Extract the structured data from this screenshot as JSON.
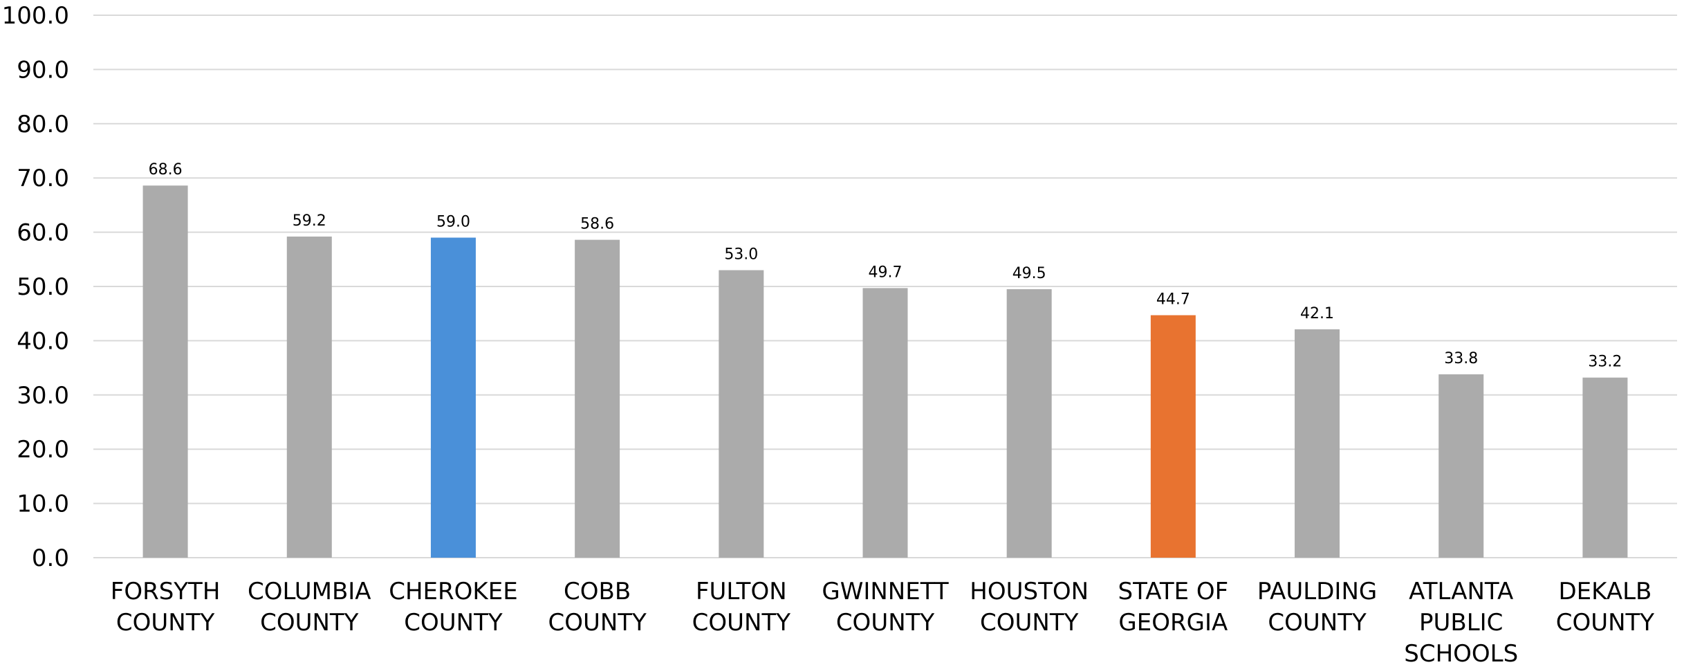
{
  "chart_data": {
    "type": "bar",
    "title": "",
    "xlabel": "",
    "ylabel": "",
    "ylim": [
      0,
      100
    ],
    "yticks": [
      "0.0",
      "10.0",
      "20.0",
      "30.0",
      "40.0",
      "50.0",
      "60.0",
      "70.0",
      "80.0",
      "90.0",
      "100.0"
    ],
    "ytick_values": [
      0,
      10,
      20,
      30,
      40,
      50,
      60,
      70,
      80,
      90,
      100
    ],
    "grid": true,
    "categories": [
      [
        "FORSYTH",
        "COUNTY"
      ],
      [
        "COLUMBIA",
        "COUNTY"
      ],
      [
        "CHEROKEE",
        "COUNTY"
      ],
      [
        "COBB",
        "COUNTY"
      ],
      [
        "FULTON",
        "COUNTY"
      ],
      [
        "GWINNETT",
        "COUNTY"
      ],
      [
        "HOUSTON",
        "COUNTY"
      ],
      [
        "STATE OF",
        "GEORGIA"
      ],
      [
        "PAULDING",
        "COUNTY"
      ],
      [
        "ATLANTA",
        "PUBLIC",
        "SCHOOLS"
      ],
      [
        "DEKALB",
        "COUNTY"
      ]
    ],
    "values": [
      68.6,
      59.2,
      59.0,
      58.6,
      53.0,
      49.7,
      49.5,
      44.7,
      42.1,
      33.8,
      33.2
    ],
    "data_labels": [
      "68.6",
      "59.2",
      "59.0",
      "58.6",
      "53.0",
      "49.7",
      "49.5",
      "44.7",
      "42.1",
      "33.8",
      "33.2"
    ],
    "colors": {
      "default": "#ABABAB",
      "highlight_blue": "#4A90D9",
      "highlight_orange": "#E87330",
      "grid": "#D9D9D9",
      "axis_text": "#000000"
    },
    "bar_colors": [
      "#ABABAB",
      "#ABABAB",
      "#4A90D9",
      "#ABABAB",
      "#ABABAB",
      "#ABABAB",
      "#ABABAB",
      "#E87330",
      "#ABABAB",
      "#ABABAB",
      "#ABABAB"
    ]
  }
}
